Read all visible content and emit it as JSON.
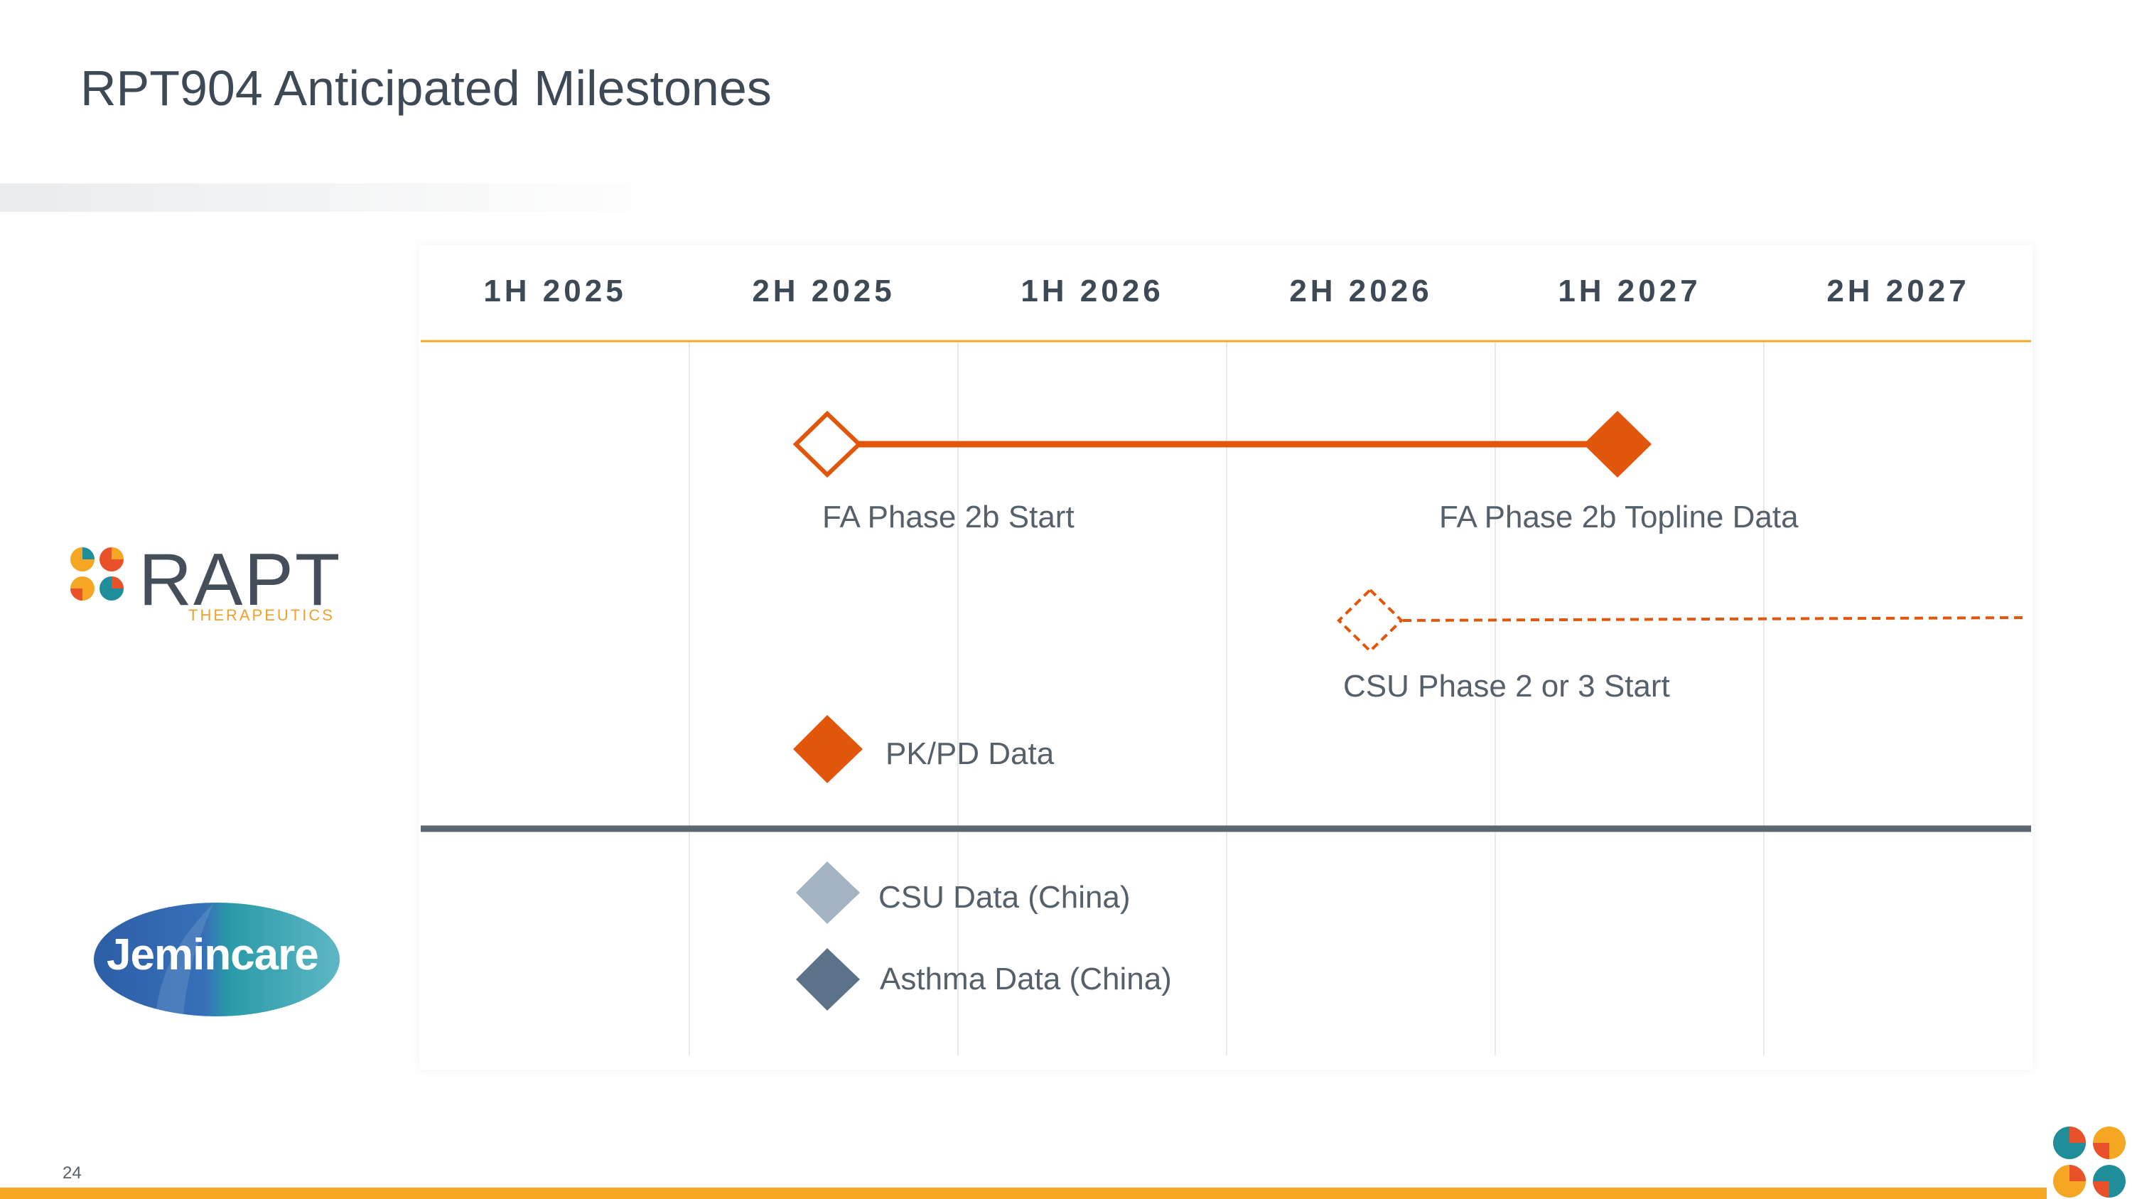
{
  "title": "RPT904 Anticipated Milestones",
  "page_number": "24",
  "columns": [
    "1H 2025",
    "2H 2025",
    "1H 2026",
    "2H 2026",
    "1H 2027",
    "2H 2027"
  ],
  "logos": {
    "rapt": {
      "wordmark": "RAPT",
      "subtitle": "THERAPEUTICS"
    },
    "jemincare": {
      "wordmark": "Jemincare"
    }
  },
  "milestones": {
    "fa_start": "FA Phase 2b Start",
    "fa_topline": "FA Phase 2b Topline Data",
    "csu_start": "CSU Phase 2 or 3 Start",
    "pkpd": "PK/PD Data",
    "csu_china": "CSU Data (China)",
    "asthma_china": "Asthma Data (China)"
  },
  "colors": {
    "accent_orange": "#e2560b",
    "header_line": "#f5a623",
    "divider": "#5b6670",
    "diamond_light": "#a3b3c2",
    "diamond_dark": "#5b7289",
    "text": "#3d4a55"
  }
}
